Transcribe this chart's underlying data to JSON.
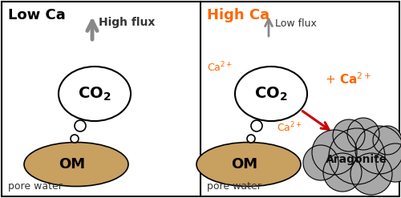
{
  "bg_color": "#ffffff",
  "border_color": "#000000",
  "left_title": "Low Ca",
  "right_title": "High Ca",
  "left_title_color": "#000000",
  "right_title_color": "#ff6600",
  "left_flux_label": "High flux",
  "right_flux_label": "Low flux",
  "flux_color": "#888888",
  "co2_label": "CO$_2$",
  "om_label": "OM",
  "aragonite_label": "Aragonite",
  "pore_water_label": "pore water",
  "ca_color": "#ff6600",
  "arrow_color": "#cc0000",
  "om_color": "#c8a060",
  "aragonite_color": "#a8a8a8",
  "bubble_color": "#ffffff",
  "fig_w": 5.0,
  "fig_h": 2.47
}
